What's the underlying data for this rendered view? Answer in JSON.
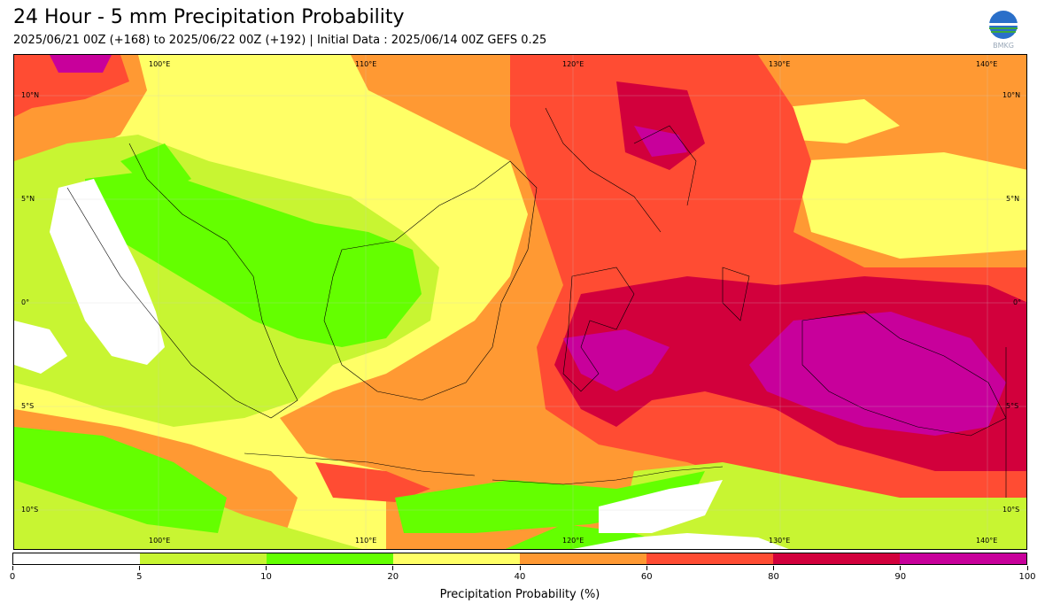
{
  "header": {
    "title": "24 Hour - 5 mm Precipitation Probability",
    "subtitle": "2025/06/21 00Z (+168) to 2025/06/22 00Z (+192) | Initial Data : 2025/06/14 00Z GEFS 0.25",
    "logo_text": "BMKG"
  },
  "map": {
    "lon_labels": [
      "100°E",
      "110°E",
      "120°E",
      "130°E",
      "140°E"
    ],
    "lat_labels": [
      "10°N",
      "5°N",
      "0°",
      "5°S",
      "10°S"
    ]
  },
  "colorbar": {
    "label": "Precipitation Probability (%)",
    "ticks": [
      "0",
      "5",
      "10",
      "20",
      "40",
      "60",
      "80",
      "90",
      "100"
    ],
    "colors": [
      "#ffffff",
      "#c8f532",
      "#64ff00",
      "#ffff66",
      "#ff9933",
      "#ff4c33",
      "#d2003c",
      "#c8009b"
    ]
  }
}
